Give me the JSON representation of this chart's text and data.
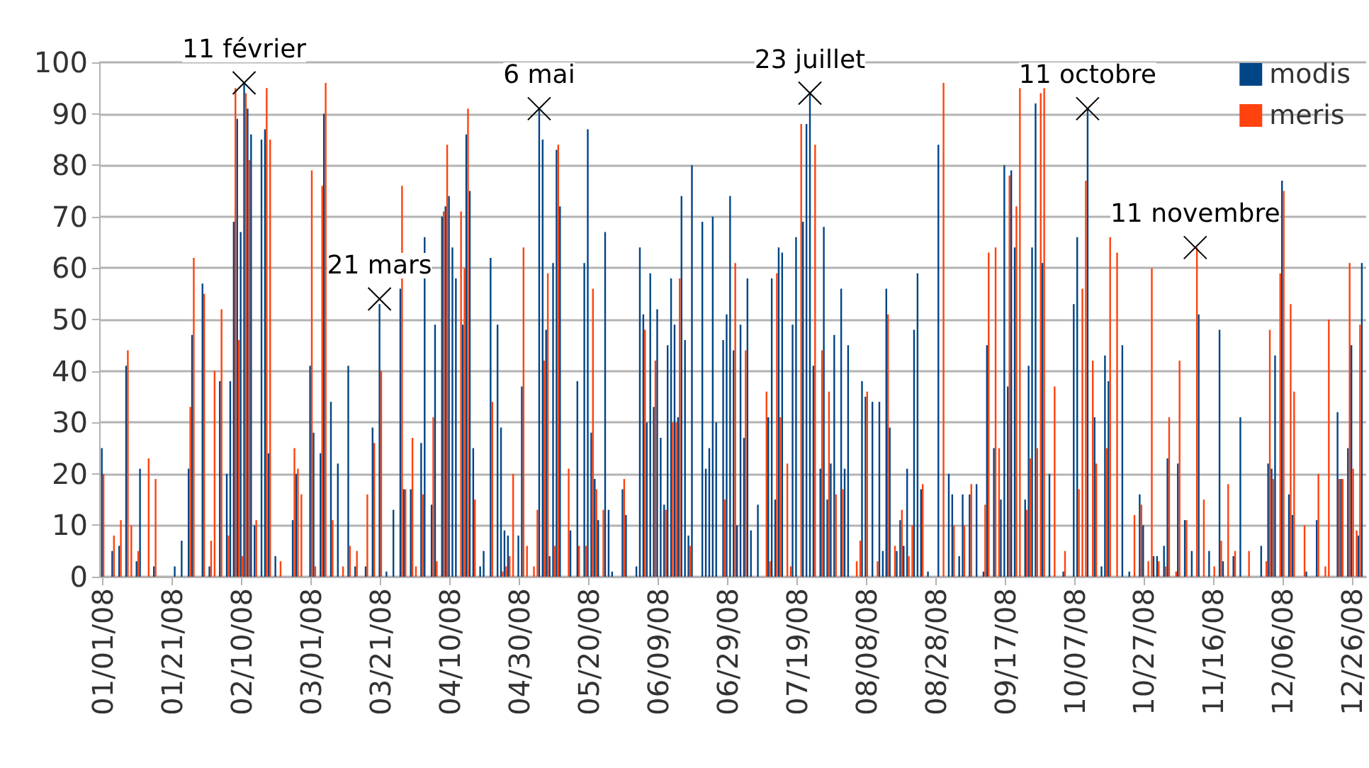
{
  "chart_data": {
    "type": "bar",
    "ylim": [
      0,
      100
    ],
    "yticks": [
      0,
      10,
      20,
      30,
      40,
      50,
      60,
      70,
      80,
      90,
      100
    ],
    "xlim": [
      "2007-12-31",
      "2008-12-30"
    ],
    "xticks": [
      {
        "value": "2008-01-01",
        "label": "01/01/08"
      },
      {
        "value": "2008-01-21",
        "label": "01/21/08"
      },
      {
        "value": "2008-02-10",
        "label": "02/10/08"
      },
      {
        "value": "2008-03-01",
        "label": "03/01/08"
      },
      {
        "value": "2008-03-21",
        "label": "03/21/08"
      },
      {
        "value": "2008-04-10",
        "label": "04/10/08"
      },
      {
        "value": "2008-04-30",
        "label": "04/30/08"
      },
      {
        "value": "2008-05-20",
        "label": "05/20/08"
      },
      {
        "value": "2008-06-09",
        "label": "06/09/08"
      },
      {
        "value": "2008-06-29",
        "label": "06/29/08"
      },
      {
        "value": "2008-07-19",
        "label": "07/19/08"
      },
      {
        "value": "2008-08-08",
        "label": "08/08/08"
      },
      {
        "value": "2008-08-28",
        "label": "08/28/08"
      },
      {
        "value": "2008-09-17",
        "label": "09/17/08"
      },
      {
        "value": "2008-10-07",
        "label": "10/07/08"
      },
      {
        "value": "2008-10-27",
        "label": "10/27/08"
      },
      {
        "value": "2008-11-16",
        "label": "11/16/08"
      },
      {
        "value": "2008-12-06",
        "label": "12/06/08"
      },
      {
        "value": "2008-12-26",
        "label": "12/26/08"
      }
    ],
    "grid": "y",
    "legend": "top right",
    "marker": "cross",
    "annotations": [
      {
        "text": "11 février",
        "x": "2008-02-11",
        "y": 96
      },
      {
        "text": "21 mars",
        "x": "2008-03-21",
        "y": 54
      },
      {
        "text": "6 mai",
        "x": "2008-05-06",
        "y": 91
      },
      {
        "text": "23 juillet",
        "x": "2008-07-23",
        "y": 94
      },
      {
        "text": "11 octobre",
        "x": "2008-10-11",
        "y": 91
      },
      {
        "text": "11 novembre",
        "x": "2008-11-11",
        "y": 64
      }
    ],
    "series": [
      {
        "name": "modis",
        "color": "#004586",
        "x": [
          "2008-01-01",
          "2008-01-04",
          "2008-01-06",
          "2008-01-08",
          "2008-01-11",
          "2008-01-12",
          "2008-01-16",
          "2008-01-22",
          "2008-01-24",
          "2008-01-26",
          "2008-01-27",
          "2008-01-30",
          "2008-02-01",
          "2008-02-04",
          "2008-02-06",
          "2008-02-07",
          "2008-02-08",
          "2008-02-09",
          "2008-02-10",
          "2008-02-11",
          "2008-02-12",
          "2008-02-13",
          "2008-02-14",
          "2008-02-16",
          "2008-02-17",
          "2008-02-18",
          "2008-02-20",
          "2008-02-25",
          "2008-02-26",
          "2008-03-01",
          "2008-03-02",
          "2008-03-04",
          "2008-03-05",
          "2008-03-07",
          "2008-03-09",
          "2008-03-12",
          "2008-03-14",
          "2008-03-17",
          "2008-03-19",
          "2008-03-21",
          "2008-03-23",
          "2008-03-25",
          "2008-03-27",
          "2008-03-28",
          "2008-03-30",
          "2008-04-02",
          "2008-04-03",
          "2008-04-05",
          "2008-04-06",
          "2008-04-08",
          "2008-04-09",
          "2008-04-10",
          "2008-04-11",
          "2008-04-12",
          "2008-04-14",
          "2008-04-15",
          "2008-04-16",
          "2008-04-17",
          "2008-04-19",
          "2008-04-20",
          "2008-04-22",
          "2008-04-24",
          "2008-04-25",
          "2008-04-26",
          "2008-04-27",
          "2008-04-30",
          "2008-05-01",
          "2008-05-06",
          "2008-05-07",
          "2008-05-08",
          "2008-05-09",
          "2008-05-10",
          "2008-05-11",
          "2008-05-12",
          "2008-05-15",
          "2008-05-17",
          "2008-05-19",
          "2008-05-20",
          "2008-05-21",
          "2008-05-22",
          "2008-05-23",
          "2008-05-25",
          "2008-05-26",
          "2008-05-27",
          "2008-05-30",
          "2008-05-31",
          "2008-06-03",
          "2008-06-04",
          "2008-06-05",
          "2008-06-06",
          "2008-06-07",
          "2008-06-08",
          "2008-06-09",
          "2008-06-10",
          "2008-06-11",
          "2008-06-12",
          "2008-06-13",
          "2008-06-14",
          "2008-06-15",
          "2008-06-16",
          "2008-06-17",
          "2008-06-18",
          "2008-06-19",
          "2008-06-22",
          "2008-06-23",
          "2008-06-24",
          "2008-06-25",
          "2008-06-26",
          "2008-06-28",
          "2008-06-29",
          "2008-06-30",
          "2008-07-01",
          "2008-07-02",
          "2008-07-03",
          "2008-07-04",
          "2008-07-05",
          "2008-07-06",
          "2008-07-08",
          "2008-07-11",
          "2008-07-12",
          "2008-07-13",
          "2008-07-14",
          "2008-07-15",
          "2008-07-18",
          "2008-07-19",
          "2008-07-21",
          "2008-07-22",
          "2008-07-23",
          "2008-07-24",
          "2008-07-26",
          "2008-07-27",
          "2008-07-28",
          "2008-07-29",
          "2008-07-30",
          "2008-08-01",
          "2008-08-02",
          "2008-08-03",
          "2008-08-07",
          "2008-08-08",
          "2008-08-10",
          "2008-08-12",
          "2008-08-13",
          "2008-08-14",
          "2008-08-15",
          "2008-08-17",
          "2008-08-18",
          "2008-08-19",
          "2008-08-20",
          "2008-08-22",
          "2008-08-23",
          "2008-08-24",
          "2008-08-26",
          "2008-08-29",
          "2008-09-01",
          "2008-09-02",
          "2008-09-04",
          "2008-09-05",
          "2008-09-07",
          "2008-09-09",
          "2008-09-11",
          "2008-09-12",
          "2008-09-14",
          "2008-09-16",
          "2008-09-17",
          "2008-09-18",
          "2008-09-19",
          "2008-09-20",
          "2008-09-23",
          "2008-09-24",
          "2008-09-25",
          "2008-09-26",
          "2008-09-28",
          "2008-09-30",
          "2008-10-04",
          "2008-10-07",
          "2008-10-08",
          "2008-10-11",
          "2008-10-13",
          "2008-10-15",
          "2008-10-16",
          "2008-10-17",
          "2008-10-21",
          "2008-10-23",
          "2008-10-26",
          "2008-10-27",
          "2008-10-30",
          "2008-10-31",
          "2008-11-02",
          "2008-11-03",
          "2008-11-06",
          "2008-11-08",
          "2008-11-10",
          "2008-11-12",
          "2008-11-15",
          "2008-11-18",
          "2008-11-19",
          "2008-11-22",
          "2008-11-24",
          "2008-11-30",
          "2008-12-02",
          "2008-12-03",
          "2008-12-04",
          "2008-12-06",
          "2008-12-08",
          "2008-12-09",
          "2008-12-13",
          "2008-12-16",
          "2008-12-22",
          "2008-12-23",
          "2008-12-25",
          "2008-12-26",
          "2008-12-28",
          "2008-12-29"
        ],
        "values": [
          25,
          5,
          6,
          41,
          3,
          21,
          2,
          2,
          7,
          21,
          47,
          57,
          2,
          38,
          20,
          38,
          69,
          89,
          67,
          96,
          91,
          86,
          10,
          85,
          87,
          24,
          4,
          11,
          20,
          41,
          28,
          24,
          90,
          34,
          22,
          41,
          2,
          2,
          29,
          53,
          1,
          13,
          56,
          17,
          17,
          26,
          66,
          14,
          49,
          70,
          72,
          74,
          64,
          58,
          49,
          86,
          75,
          25,
          2,
          5,
          62,
          49,
          29,
          9,
          8,
          8,
          37,
          91,
          85,
          48,
          4,
          61,
          83,
          72,
          9,
          38,
          61,
          87,
          28,
          19,
          11,
          67,
          13,
          1,
          17,
          12,
          2,
          64,
          51,
          30,
          59,
          33,
          52,
          27,
          14,
          45,
          58,
          49,
          31,
          74,
          46,
          8,
          80,
          69,
          21,
          25,
          70,
          30,
          46,
          51,
          74,
          44,
          10,
          49,
          27,
          58,
          9,
          14,
          31,
          58,
          15,
          64,
          63,
          49,
          66,
          69,
          88,
          94,
          41,
          21,
          68,
          15,
          22,
          47,
          56,
          21,
          45,
          38,
          35,
          34,
          34,
          5,
          56,
          29,
          5,
          11,
          6,
          21,
          48,
          59,
          17,
          1,
          84,
          20,
          16,
          4,
          16,
          16,
          18,
          1,
          45,
          25,
          15,
          80,
          37,
          79,
          64,
          15,
          41,
          64,
          92,
          61,
          20,
          1,
          53,
          66,
          91,
          31,
          2,
          43,
          38,
          45,
          1,
          16,
          10,
          4,
          4,
          6,
          23,
          22,
          11,
          5,
          51,
          5,
          48,
          3,
          4,
          31,
          6,
          22,
          21,
          43,
          77,
          16,
          12,
          1,
          11,
          32,
          19,
          25,
          45,
          8,
          61
        ]
      },
      {
        "name": "meris",
        "color": "#ff420e",
        "x": [
          "2008-01-01",
          "2008-01-04",
          "2008-01-06",
          "2008-01-08",
          "2008-01-09",
          "2008-01-11",
          "2008-01-14",
          "2008-01-16",
          "2008-01-26",
          "2008-01-27",
          "2008-01-30",
          "2008-02-01",
          "2008-02-02",
          "2008-02-04",
          "2008-02-06",
          "2008-02-08",
          "2008-02-09",
          "2008-02-10",
          "2008-02-11",
          "2008-02-12",
          "2008-02-14",
          "2008-02-17",
          "2008-02-18",
          "2008-02-21",
          "2008-02-25",
          "2008-02-26",
          "2008-02-27",
          "2008-03-01",
          "2008-03-02",
          "2008-03-04",
          "2008-03-05",
          "2008-03-07",
          "2008-03-10",
          "2008-03-12",
          "2008-03-14",
          "2008-03-17",
          "2008-03-19",
          "2008-03-21",
          "2008-03-27",
          "2008-03-28",
          "2008-03-30",
          "2008-03-31",
          "2008-04-02",
          "2008-04-05",
          "2008-04-06",
          "2008-04-08",
          "2008-04-09",
          "2008-04-13",
          "2008-04-14",
          "2008-04-15",
          "2008-04-17",
          "2008-04-22",
          "2008-04-25",
          "2008-04-26",
          "2008-04-27",
          "2008-04-28",
          "2008-05-01",
          "2008-05-02",
          "2008-05-04",
          "2008-05-05",
          "2008-05-07",
          "2008-05-08",
          "2008-05-10",
          "2008-05-11",
          "2008-05-14",
          "2008-05-17",
          "2008-05-19",
          "2008-05-21",
          "2008-05-22",
          "2008-05-24",
          "2008-05-30",
          "2008-06-05",
          "2008-06-08",
          "2008-06-11",
          "2008-06-13",
          "2008-06-14",
          "2008-06-15",
          "2008-06-18",
          "2008-06-28",
          "2008-07-01",
          "2008-07-04",
          "2008-07-10",
          "2008-07-11",
          "2008-07-13",
          "2008-07-14",
          "2008-07-16",
          "2008-07-17",
          "2008-07-20",
          "2008-07-24",
          "2008-07-26",
          "2008-07-28",
          "2008-07-30",
          "2008-08-01",
          "2008-08-05",
          "2008-08-06",
          "2008-08-08",
          "2008-08-11",
          "2008-08-14",
          "2008-08-16",
          "2008-08-18",
          "2008-08-20",
          "2008-08-21",
          "2008-08-24",
          "2008-08-30",
          "2008-09-02",
          "2008-09-05",
          "2008-09-07",
          "2008-09-11",
          "2008-09-12",
          "2008-09-14",
          "2008-09-15",
          "2008-09-18",
          "2008-09-20",
          "2008-09-21",
          "2008-09-23",
          "2008-09-24",
          "2008-09-26",
          "2008-09-27",
          "2008-09-28",
          "2008-10-01",
          "2008-10-04",
          "2008-10-08",
          "2008-10-09",
          "2008-10-10",
          "2008-10-12",
          "2008-10-13",
          "2008-10-16",
          "2008-10-17",
          "2008-10-19",
          "2008-10-24",
          "2008-10-26",
          "2008-10-28",
          "2008-10-29",
          "2008-10-31",
          "2008-11-02",
          "2008-11-03",
          "2008-11-05",
          "2008-11-06",
          "2008-11-08",
          "2008-11-11",
          "2008-11-13",
          "2008-11-16",
          "2008-11-18",
          "2008-11-20",
          "2008-11-22",
          "2008-11-26",
          "2008-12-01",
          "2008-12-02",
          "2008-12-03",
          "2008-12-05",
          "2008-12-06",
          "2008-12-08",
          "2008-12-09",
          "2008-12-12",
          "2008-12-16",
          "2008-12-18",
          "2008-12-19",
          "2008-12-22",
          "2008-12-23",
          "2008-12-25",
          "2008-12-26",
          "2008-12-27",
          "2008-12-28"
        ],
        "values": [
          20,
          8,
          11,
          44,
          10,
          5,
          23,
          19,
          33,
          62,
          55,
          7,
          40,
          52,
          8,
          95,
          46,
          4,
          94,
          81,
          11,
          95,
          85,
          3,
          25,
          21,
          16,
          79,
          2,
          76,
          96,
          11,
          2,
          6,
          5,
          16,
          26,
          40,
          76,
          17,
          27,
          2,
          16,
          31,
          3,
          71,
          84,
          71,
          60,
          91,
          15,
          34,
          1,
          2,
          4,
          20,
          64,
          6,
          2,
          13,
          42,
          59,
          6,
          84,
          21,
          6,
          6,
          56,
          17,
          13,
          19,
          48,
          42,
          13,
          30,
          30,
          58,
          6,
          15,
          61,
          44,
          36,
          3,
          59,
          31,
          22,
          2,
          88,
          84,
          44,
          36,
          16,
          17,
          3,
          7,
          36,
          3,
          51,
          6,
          13,
          4,
          10,
          18,
          96,
          10,
          10,
          18,
          14,
          63,
          64,
          25,
          78,
          72,
          95,
          13,
          23,
          25,
          94,
          95,
          37,
          5,
          17,
          56,
          77,
          42,
          22,
          25,
          66,
          63,
          12,
          14,
          3,
          60,
          3,
          2,
          31,
          1,
          42,
          11,
          64,
          15,
          2,
          7,
          18,
          5,
          5,
          3,
          48,
          19,
          59,
          75,
          53,
          36,
          10,
          20,
          2,
          50,
          19,
          19,
          61,
          21,
          9,
          49
        ]
      }
    ]
  }
}
